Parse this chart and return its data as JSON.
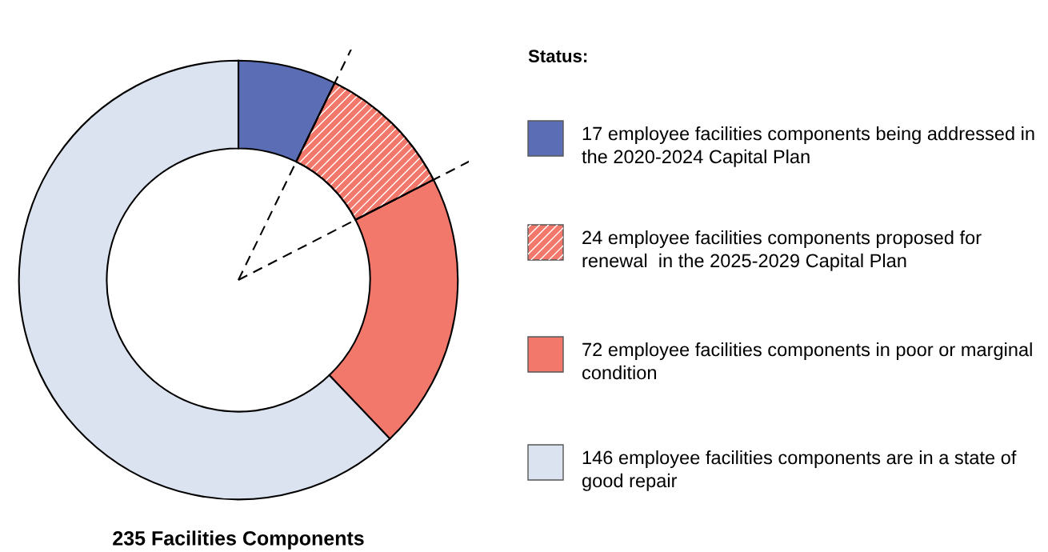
{
  "chart_data": {
    "type": "donut",
    "title": "235 Facilities Components",
    "legend_title": "Status:",
    "legend": "right",
    "categories": [
      "17 employee facilities components being addressed in the 2020-2024 Capital Plan",
      "24 employee facilities components proposed for renewal  in the 2025-2029 Capital Plan",
      "72 employee facilities components in poor or marginal condition",
      "146 employee facilities components are in a state of good repair"
    ],
    "values": [
      17,
      24,
      48,
      146
    ],
    "colors": [
      "#5b6db4",
      "#f2786c",
      "#f2786c",
      "#dbe2f0"
    ]
  }
}
